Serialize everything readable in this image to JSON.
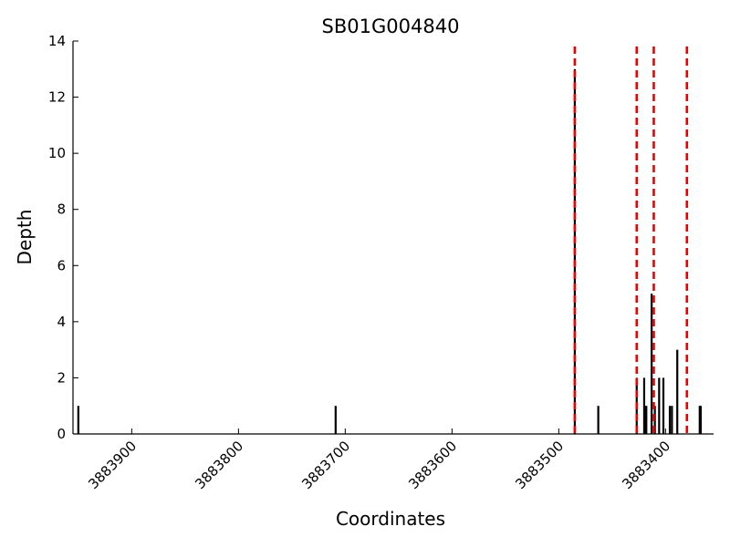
{
  "chart_data": {
    "type": "bar",
    "title": "SB01G004840",
    "xlabel": "Coordinates",
    "ylabel": "Depth",
    "x_axis_reversed": true,
    "xlim": [
      3883955,
      3883355
    ],
    "ylim": [
      0,
      14
    ],
    "x_ticks": [
      3883900,
      3883800,
      3883700,
      3883600,
      3883500,
      3883400
    ],
    "x_tick_labels": [
      "3883900",
      "3883800",
      "3883700",
      "3883600",
      "3883500",
      "3883400"
    ],
    "y_ticks": [
      0,
      2,
      4,
      6,
      8,
      10,
      12,
      14
    ],
    "y_tick_labels": [
      "0",
      "2",
      "4",
      "6",
      "8",
      "10",
      "12",
      "14"
    ],
    "grid": false,
    "series": [
      {
        "color": "#000000",
        "x": [
          3883950,
          3883709,
          3883485,
          3883463,
          3883427,
          3883420,
          3883419,
          3883418,
          3883413,
          3883410,
          3883406,
          3883402,
          3883396,
          3883394,
          3883389,
          3883368,
          3883367
        ],
        "values": [
          1,
          1,
          13,
          1,
          2,
          2,
          1,
          1,
          5,
          1,
          2,
          2,
          1,
          1,
          3,
          1,
          1
        ]
      }
    ],
    "vlines": {
      "color": "#ee0000",
      "style": "dashed",
      "x": [
        3883485,
        3883427,
        3883411,
        3883380
      ]
    }
  }
}
